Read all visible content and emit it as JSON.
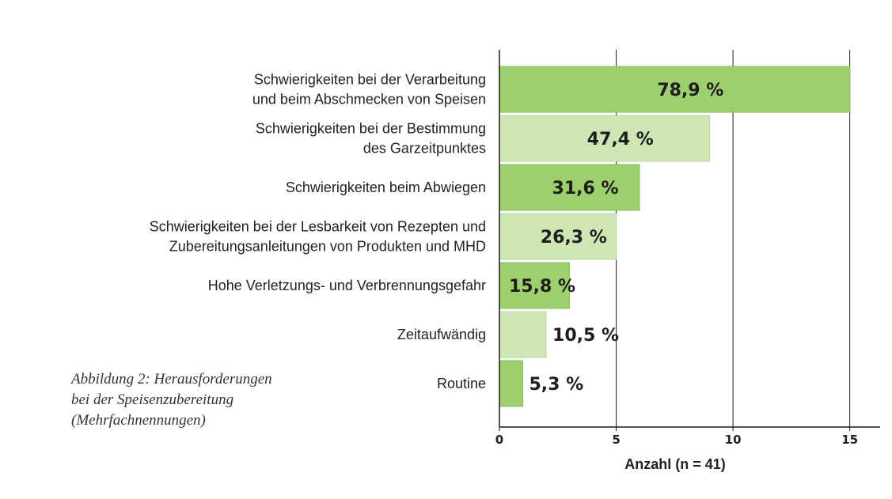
{
  "chart_data": {
    "type": "bar",
    "orientation": "horizontal",
    "categories": [
      [
        "Schwierigkeiten bei der Verarbeitung",
        "und beim Abschmecken von Speisen"
      ],
      [
        "Schwierigkeiten bei der Bestimmung",
        "des Garzeitpunktes"
      ],
      [
        "Schwierigkeiten beim Abwiegen"
      ],
      [
        "Schwierigkeiten bei der Lesbarkeit von Rezepten und",
        "Zubereitungsanleitungen von Produkten und MHD"
      ],
      [
        "Hohe Verletzungs- und Verbrennungsgefahr"
      ],
      [
        "Zeitaufwändig"
      ],
      [
        "Routine"
      ]
    ],
    "values": [
      15,
      9,
      6,
      5,
      3,
      2,
      1
    ],
    "data_labels": [
      "78,9 %",
      "47,4 %",
      "31,6 %",
      "26,3 %",
      "15,8 %",
      "10,5 %",
      "5,3 %"
    ],
    "xlabel": "Anzahl (n = 41)",
    "ylabel": "",
    "xlim": [
      0,
      16.3
    ],
    "xticks": [
      0,
      5,
      10,
      15
    ],
    "xtick_labels": [
      "0",
      "5",
      "10",
      "15"
    ],
    "grid": "vertical",
    "colors": {
      "dark": "#9dcf6c",
      "light": "#cde6b4",
      "dark_stroke": "#8dbf5e",
      "light_stroke": "#b9d99c"
    },
    "bar_color_pattern": [
      "dark",
      "light",
      "dark",
      "light",
      "dark",
      "light",
      "dark"
    ]
  },
  "caption": {
    "lines": [
      "Abbildung 2: Herausforderungen",
      "bei der Speisenzubereitung",
      "(Mehrfachnennungen)"
    ]
  }
}
